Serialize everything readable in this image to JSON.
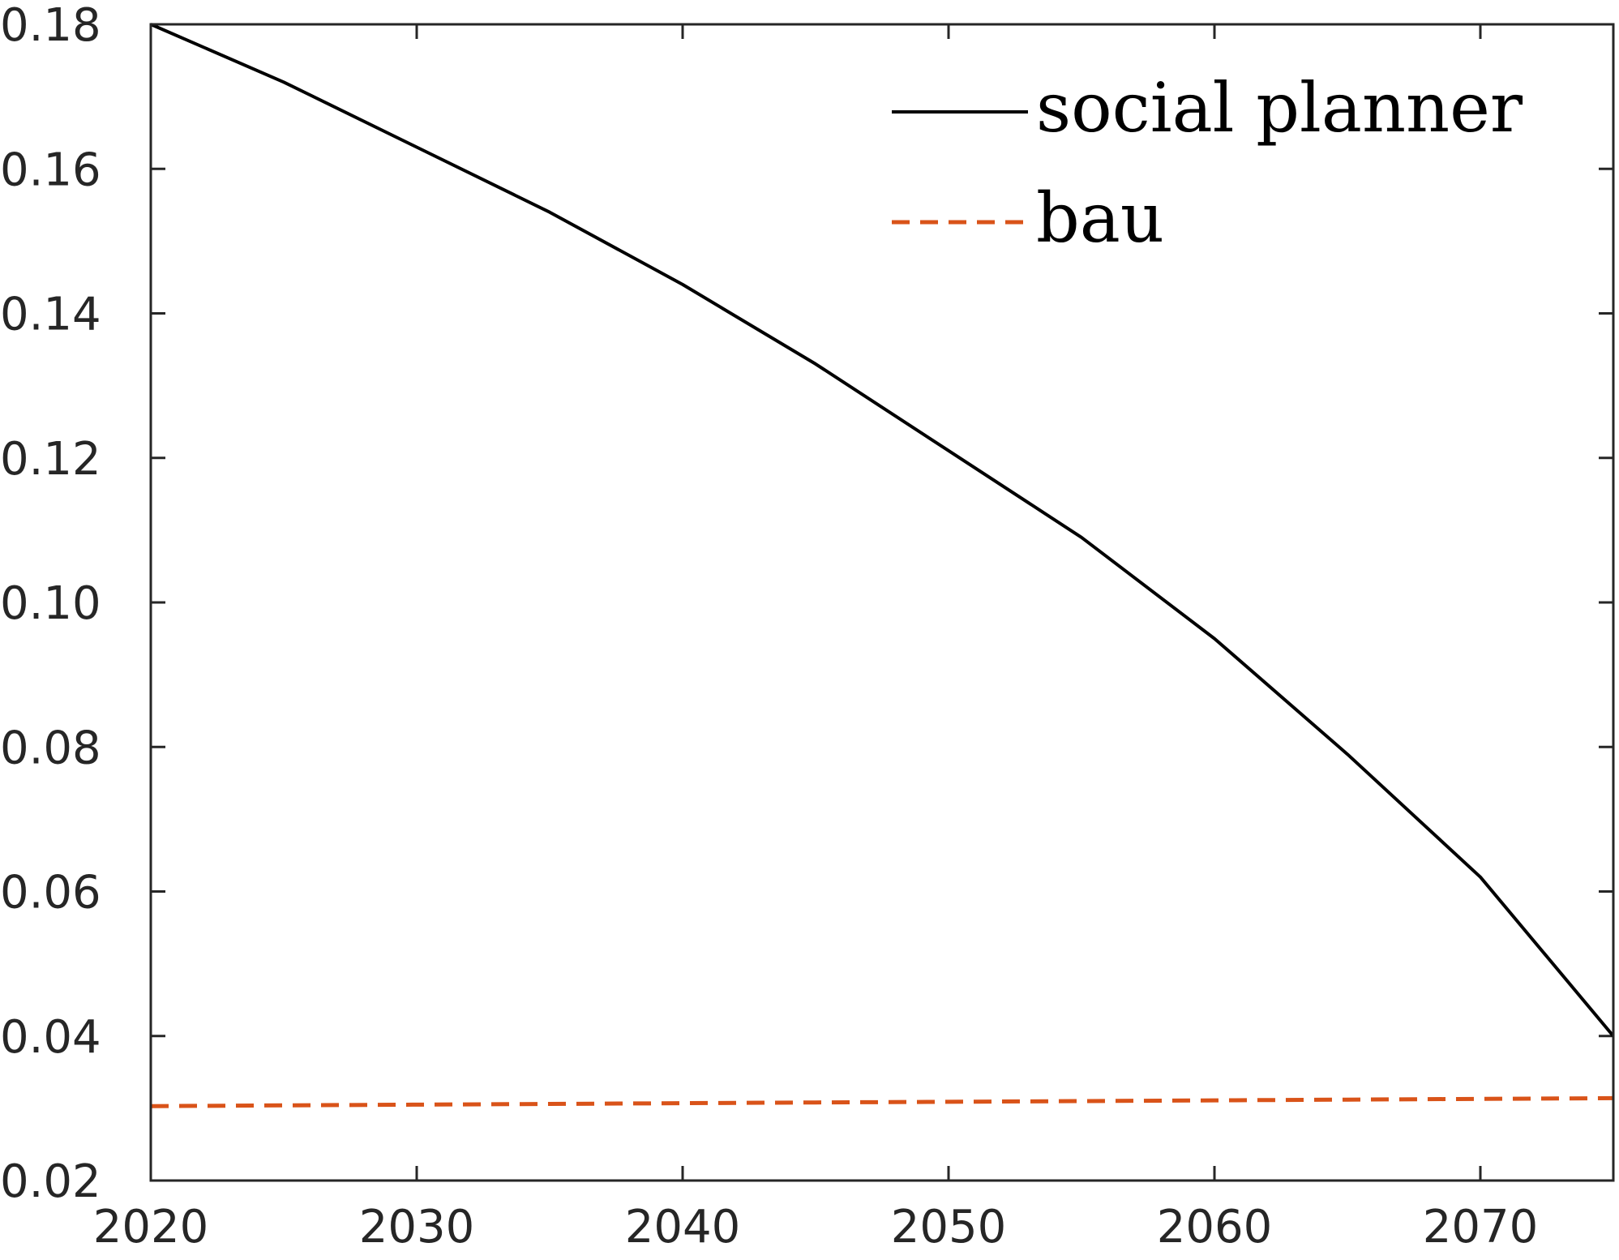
{
  "chart_data": {
    "type": "line",
    "title": "",
    "xlabel": "",
    "ylabel": "",
    "xlim": [
      2020,
      2075
    ],
    "ylim": [
      0.02,
      0.18
    ],
    "xticks": [
      2020,
      2030,
      2040,
      2050,
      2060,
      2070
    ],
    "xtick_labels": [
      "2020",
      "2030",
      "2040",
      "2050",
      "2060",
      "2070"
    ],
    "yticks": [
      0.02,
      0.04,
      0.06,
      0.08,
      0.1,
      0.12,
      0.14,
      0.16,
      0.18
    ],
    "ytick_labels": [
      "0.02",
      "0.04",
      "0.06",
      "0.08",
      "0.10",
      "0.12",
      "0.14",
      "0.16",
      "0.18"
    ],
    "grid": false,
    "legend_position": "top-right",
    "series": [
      {
        "name": "social planner",
        "color": "#000000",
        "style": "solid",
        "x": [
          2020,
          2025,
          2030,
          2035,
          2040,
          2045,
          2050,
          2055,
          2060,
          2065,
          2070,
          2075
        ],
        "y": [
          0.18,
          0.172,
          0.163,
          0.154,
          0.144,
          0.133,
          0.121,
          0.109,
          0.095,
          0.079,
          0.062,
          0.04
        ]
      },
      {
        "name": "bau",
        "color": "#D95319",
        "style": "dashed",
        "x": [
          2020,
          2025,
          2030,
          2035,
          2040,
          2045,
          2050,
          2055,
          2060,
          2065,
          2070,
          2075
        ],
        "y": [
          0.0303,
          0.0304,
          0.0305,
          0.0306,
          0.0307,
          0.0308,
          0.0309,
          0.031,
          0.0311,
          0.0312,
          0.0313,
          0.0314
        ]
      }
    ]
  }
}
